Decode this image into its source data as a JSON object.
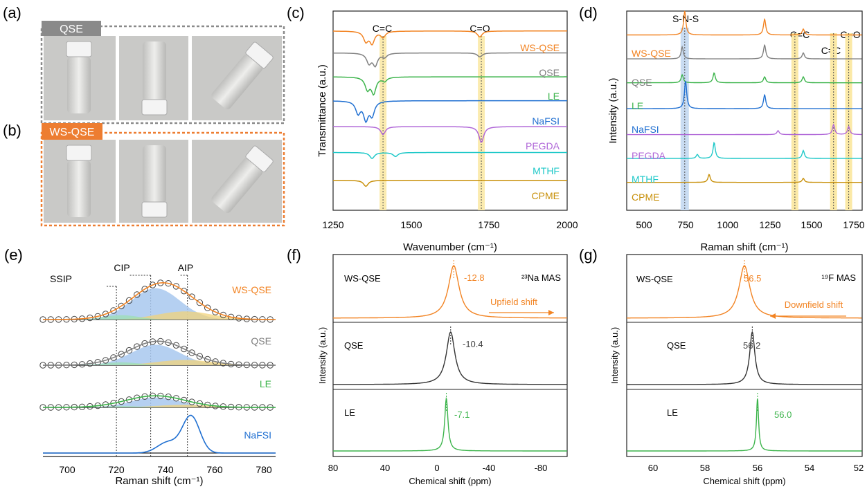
{
  "panels": {
    "a": {
      "label": "(a)",
      "tag": "QSE",
      "tag_color": "#8a8a8a"
    },
    "b": {
      "label": "(b)",
      "tag": "WS-QSE",
      "tag_color": "#ed7d31"
    },
    "c": {
      "label": "(c)"
    },
    "d": {
      "label": "(d)"
    },
    "e": {
      "label": "(e)"
    },
    "f": {
      "label": "(f)"
    },
    "g": {
      "label": "(g)"
    }
  },
  "colors": {
    "WS-QSE": "#f28322",
    "QSE": "#7f7f7f",
    "LE": "#3cb44b",
    "NaFSI": "#1f6fd1",
    "PEGDA": "#b067d8",
    "MTHF": "#1ec8c8",
    "CPME": "#c8900a",
    "grid_band": "#fbe9a6",
    "sns_band": "#c9dcf2"
  },
  "chart_data": [
    {
      "id": "c",
      "type": "line",
      "xlabel": "Wavenumber (cm⁻¹)",
      "ylabel": "Transmittance (a.u.)",
      "xlim": [
        1250,
        2000
      ],
      "xticks": [
        "1250",
        "1500",
        "1750",
        "2000"
      ],
      "annotations": [
        "C=C",
        "C=O"
      ],
      "band_positions": [
        1410,
        1725
      ],
      "series": [
        {
          "name": "WS-QSE",
          "baseline": 0.9,
          "peaks": [
            [
              1355,
              0.05
            ],
            [
              1375,
              0.06
            ],
            [
              1410,
              0.03
            ],
            [
              1720,
              0.03
            ]
          ]
        },
        {
          "name": "QSE",
          "baseline": 0.79,
          "peaks": [
            [
              1365,
              0.05
            ],
            [
              1385,
              0.06
            ],
            [
              1415,
              0.02
            ],
            [
              1720,
              0.02
            ]
          ]
        },
        {
          "name": "LE",
          "baseline": 0.67,
          "peaks": [
            [
              1360,
              0.06
            ],
            [
              1380,
              0.08
            ],
            [
              1415,
              0.02
            ]
          ]
        },
        {
          "name": "NaFSI",
          "baseline": 0.55,
          "peaks": [
            [
              1330,
              0.06
            ],
            [
              1355,
              0.09
            ],
            [
              1375,
              0.07
            ]
          ]
        },
        {
          "name": "PEGDA",
          "baseline": 0.42,
          "peaks": [
            [
              1410,
              0.04
            ],
            [
              1725,
              0.08
            ]
          ]
        },
        {
          "name": "MTHF",
          "baseline": 0.29,
          "peaks": [
            [
              1375,
              0.03
            ],
            [
              1450,
              0.02
            ]
          ]
        },
        {
          "name": "CPME",
          "baseline": 0.15,
          "peaks": [
            [
              1355,
              0.03
            ]
          ]
        }
      ]
    },
    {
      "id": "d",
      "type": "line",
      "xlabel": "Raman shift (cm⁻¹)",
      "ylabel": "Intensity (a.u.)",
      "xlim": [
        400,
        1800
      ],
      "xticks": [
        "500",
        "750",
        "1000",
        "1250",
        "1500",
        "1750"
      ],
      "annotations": [
        "S-N-S",
        "C=C",
        "C=C",
        "C=O"
      ],
      "series": [
        {
          "name": "WS-QSE",
          "baseline": 0.88,
          "peaks": [
            [
              745,
              0.12
            ],
            [
              1220,
              0.08
            ],
            [
              1450,
              0.03
            ]
          ]
        },
        {
          "name": "QSE",
          "baseline": 0.76,
          "peaks": [
            [
              730,
              0.06
            ],
            [
              1220,
              0.07
            ],
            [
              1450,
              0.03
            ]
          ]
        },
        {
          "name": "LE",
          "baseline": 0.64,
          "peaks": [
            [
              730,
              0.04
            ],
            [
              920,
              0.05
            ],
            [
              1220,
              0.03
            ],
            [
              1450,
              0.03
            ]
          ]
        },
        {
          "name": "NaFSI",
          "baseline": 0.51,
          "peaks": [
            [
              750,
              0.14
            ],
            [
              1220,
              0.07
            ]
          ]
        },
        {
          "name": "PEGDA",
          "baseline": 0.38,
          "peaks": [
            [
              1300,
              0.02
            ],
            [
              1630,
              0.05
            ],
            [
              1720,
              0.04
            ]
          ]
        },
        {
          "name": "MTHF",
          "baseline": 0.26,
          "peaks": [
            [
              920,
              0.08
            ],
            [
              820,
              0.02
            ],
            [
              1450,
              0.04
            ]
          ]
        },
        {
          "name": "CPME",
          "baseline": 0.14,
          "peaks": [
            [
              890,
              0.04
            ],
            [
              1450,
              0.02
            ]
          ]
        }
      ]
    },
    {
      "id": "e",
      "type": "line",
      "xlabel": "Raman shift (cm⁻¹)",
      "xlim": [
        690,
        785
      ],
      "xticks": [
        "700",
        "720",
        "740",
        "760",
        "780"
      ],
      "annotations": [
        "SSIP",
        "CIP",
        "AIP"
      ],
      "guide_positions": [
        720,
        734,
        749
      ],
      "series": [
        {
          "name": "WS-QSE",
          "center": 739,
          "height": 0.95
        },
        {
          "name": "QSE",
          "center": 737,
          "height": 0.62
        },
        {
          "name": "LE",
          "center": 736,
          "height": 0.3
        },
        {
          "name": "NaFSI",
          "center": 750,
          "height": 1.0
        }
      ]
    },
    {
      "id": "f",
      "type": "line",
      "title": "²³Na MAS",
      "xlabel": "Chemical shift (ppm)",
      "ylabel": "Intensity (a.u.)",
      "xlim": [
        80,
        -100
      ],
      "xticks": [
        "80",
        "40",
        "0",
        "-40",
        "-80"
      ],
      "annotation": "Upfield shift",
      "series": [
        {
          "name": "WS-QSE",
          "peak": -12.8,
          "peak_label": "-12.8",
          "width": 5
        },
        {
          "name": "QSE",
          "peak": -10.4,
          "peak_label": "-10.4",
          "width": 4
        },
        {
          "name": "LE",
          "peak": -7.1,
          "peak_label": "-7.1",
          "width": 1.5
        }
      ]
    },
    {
      "id": "g",
      "type": "line",
      "title": "¹⁹F MAS",
      "xlabel": "Chemical shift (ppm)",
      "ylabel": "Intensity (a.u.)",
      "xlim": [
        61,
        52
      ],
      "xticks": [
        "60",
        "58",
        "56",
        "54",
        "52"
      ],
      "annotation": "Downfield shift",
      "series": [
        {
          "name": "WS-QSE",
          "peak": 56.5,
          "peak_label": "56.5",
          "width": 0.25
        },
        {
          "name": "QSE",
          "peak": 56.2,
          "peak_label": "56.2",
          "width": 0.12
        },
        {
          "name": "LE",
          "peak": 56.0,
          "peak_label": "56.0",
          "width": 0.05
        }
      ]
    }
  ]
}
